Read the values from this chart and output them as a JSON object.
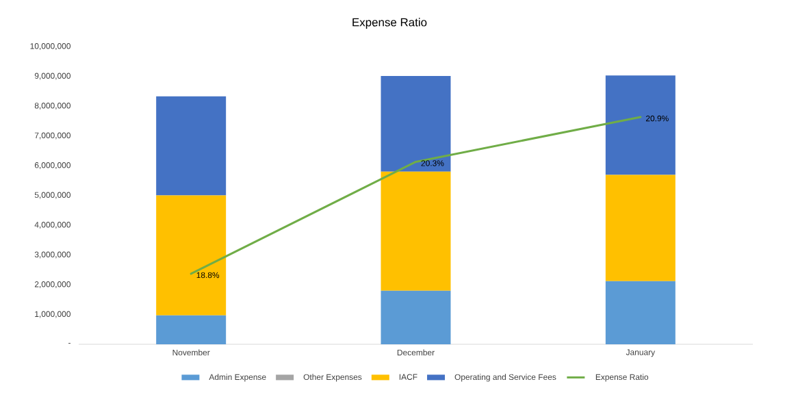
{
  "chart_data": {
    "type": "bar",
    "title": "Expense Ratio",
    "stacked": true,
    "categories": [
      "November",
      "December",
      "January"
    ],
    "series": [
      {
        "name": "Admin Expense",
        "color": "#5b9bd5",
        "values": [
          970000,
          1800000,
          2120000
        ]
      },
      {
        "name": "Other Expenses",
        "color": "#a5a5a5",
        "values": [
          0,
          0,
          0
        ]
      },
      {
        "name": "IACF",
        "color": "#ffc000",
        "values": [
          4030000,
          4000000,
          3570000
        ]
      },
      {
        "name": "Operating and Service Fees",
        "color": "#4472c4",
        "values": [
          3330000,
          3210000,
          3340000
        ]
      },
      {
        "name": "Expense Ratio",
        "type": "line",
        "axis": "y2",
        "color": "#70ad47",
        "values": [
          18.8,
          20.3,
          20.9
        ],
        "value_labels": [
          "18.8%",
          "20.3%",
          "20.9%"
        ]
      }
    ],
    "ylim": [
      0,
      10000000
    ],
    "yticks": [
      {
        "value": 0,
        "label": "-"
      },
      {
        "value": 1000000,
        "label": "1,000,000"
      },
      {
        "value": 2000000,
        "label": "2,000,000"
      },
      {
        "value": 3000000,
        "label": "3,000,000"
      },
      {
        "value": 4000000,
        "label": "4,000,000"
      },
      {
        "value": 5000000,
        "label": "5,000,000"
      },
      {
        "value": 6000000,
        "label": "6,000,000"
      },
      {
        "value": 7000000,
        "label": "7,000,000"
      },
      {
        "value": 8000000,
        "label": "8,000,000"
      },
      {
        "value": 9000000,
        "label": "9,000,000"
      },
      {
        "value": 10000000,
        "label": "10,000,000"
      }
    ],
    "legend": "bottom"
  }
}
